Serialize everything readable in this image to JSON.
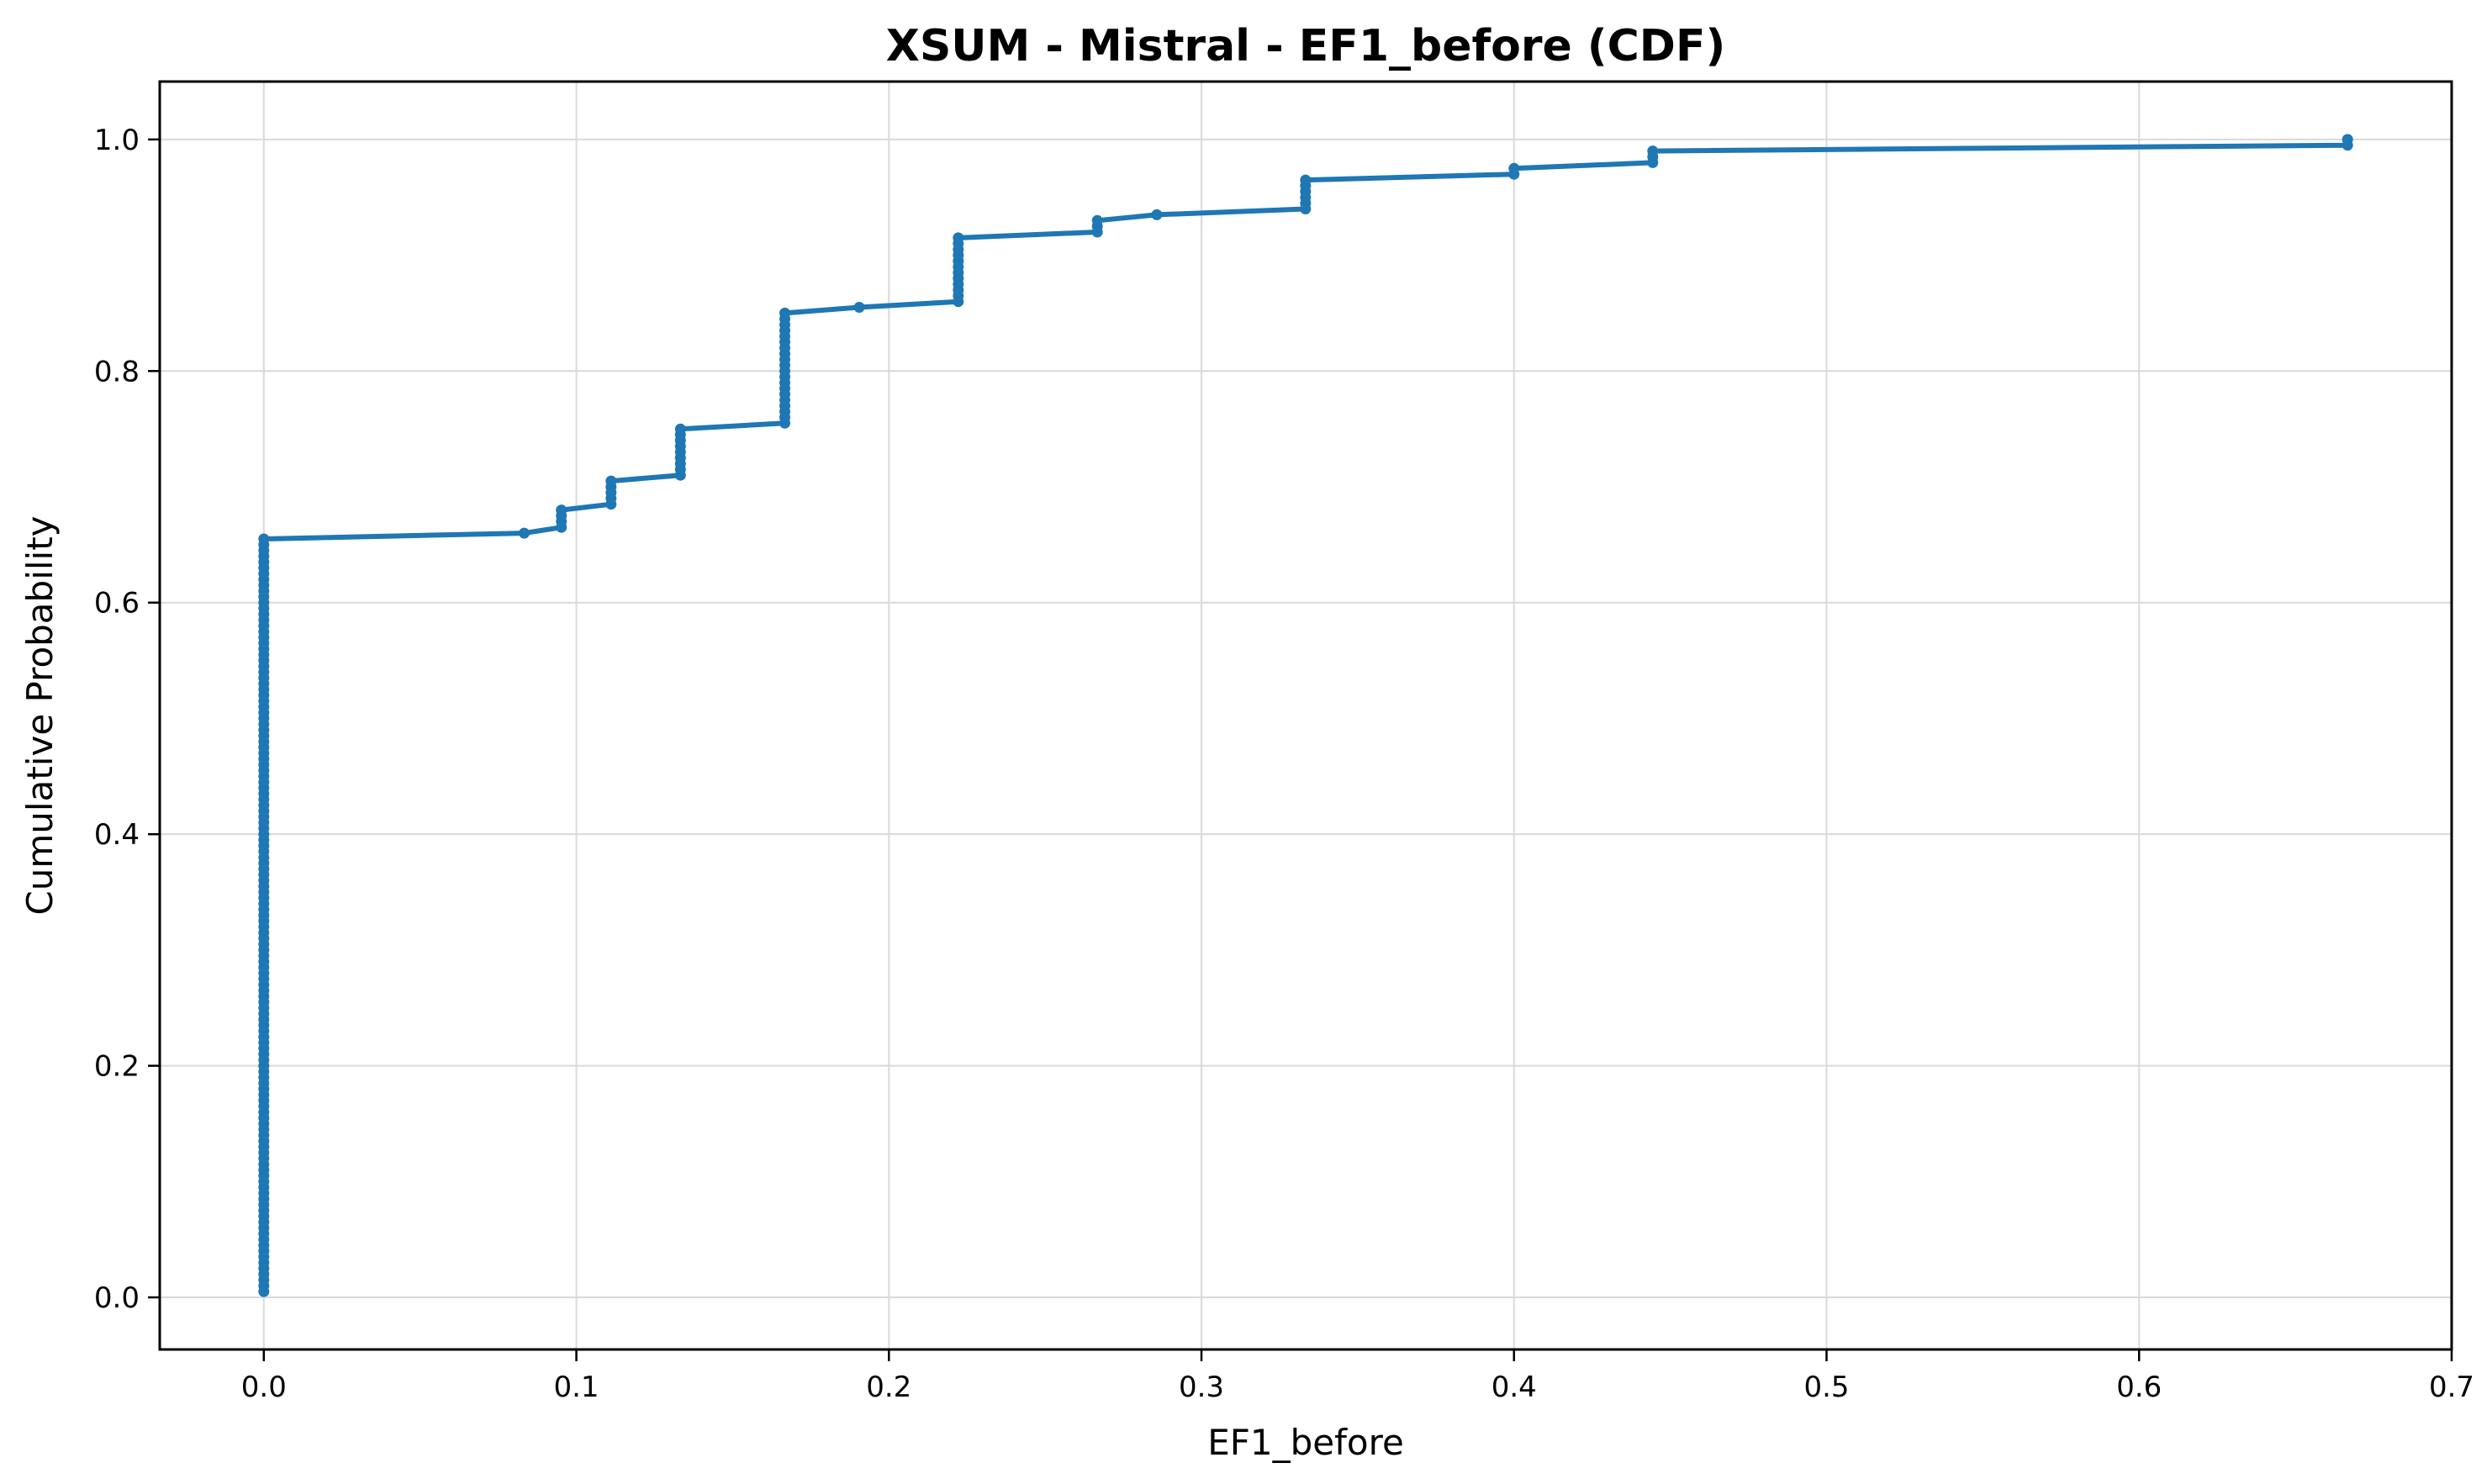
{
  "chart_data": {
    "type": "line",
    "title": "XSUM - Mistral - EF1_before (CDF)",
    "xlabel": "EF1_before",
    "ylabel": "Cumulative Probability",
    "xlim": [
      -0.0333,
      0.7
    ],
    "ylim": [
      -0.045,
      1.05
    ],
    "xticks": [
      0.0,
      0.1,
      0.2,
      0.3,
      0.4,
      0.5,
      0.6,
      0.7
    ],
    "xtick_labels": [
      "0.0",
      "0.1",
      "0.2",
      "0.3",
      "0.4",
      "0.5",
      "0.6",
      "0.7"
    ],
    "yticks": [
      0.0,
      0.2,
      0.4,
      0.6,
      0.8,
      1.0
    ],
    "ytick_labels": [
      "0.0",
      "0.2",
      "0.4",
      "0.6",
      "0.8",
      "1.0"
    ],
    "grid": true,
    "color": "#1f77b4",
    "series": [
      {
        "marker": "circle",
        "steps": [
          {
            "x": 0.0,
            "y_from": 0.005,
            "y_to": 0.655
          },
          {
            "x": 0.0833,
            "y_from": 0.66,
            "y_to": 0.66
          },
          {
            "x": 0.0952,
            "y_from": 0.665,
            "y_to": 0.68
          },
          {
            "x": 0.1111,
            "y_from": 0.685,
            "y_to": 0.705
          },
          {
            "x": 0.1333,
            "y_from": 0.71,
            "y_to": 0.75
          },
          {
            "x": 0.1667,
            "y_from": 0.755,
            "y_to": 0.85
          },
          {
            "x": 0.1905,
            "y_from": 0.855,
            "y_to": 0.855
          },
          {
            "x": 0.2222,
            "y_from": 0.86,
            "y_to": 0.915
          },
          {
            "x": 0.2667,
            "y_from": 0.92,
            "y_to": 0.93
          },
          {
            "x": 0.2857,
            "y_from": 0.935,
            "y_to": 0.935
          },
          {
            "x": 0.3333,
            "y_from": 0.94,
            "y_to": 0.965
          },
          {
            "x": 0.4,
            "y_from": 0.97,
            "y_to": 0.975
          },
          {
            "x": 0.4444,
            "y_from": 0.98,
            "y_to": 0.99
          },
          {
            "x": 0.6667,
            "y_from": 0.995,
            "y_to": 1.0
          }
        ]
      }
    ]
  }
}
